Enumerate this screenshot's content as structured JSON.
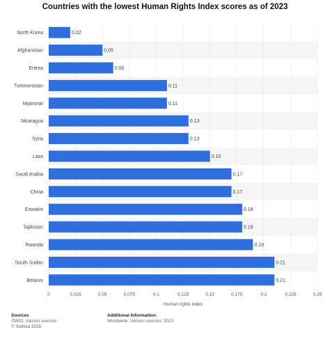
{
  "chart_data": {
    "type": "bar",
    "orientation": "horizontal",
    "title": "Countries with the lowest Human Rights Index scores as of 2023",
    "xlabel": "Human rights index",
    "ylabel": "",
    "xlim": [
      0,
      0.25
    ],
    "x_ticks": [
      "0",
      "0.025",
      "0.05",
      "0.075",
      "0.1",
      "0.125",
      "0.15",
      "0.175",
      "0.2",
      "0.225",
      "0.25"
    ],
    "x_tick_values": [
      0,
      0.025,
      0.05,
      0.075,
      0.1,
      0.125,
      0.15,
      0.175,
      0.2,
      0.225,
      0.25
    ],
    "categories": [
      "North Korea",
      "Afghanistan",
      "Eritrea",
      "Turkmenistan",
      "Myanmar",
      "Nicaragua",
      "Syria",
      "Laos",
      "Saudi Arabia",
      "China",
      "Eswatini",
      "Tajikistan",
      "Rwanda",
      "South Sudan",
      "Belarus"
    ],
    "values": [
      0.02,
      0.05,
      0.06,
      0.11,
      0.11,
      0.13,
      0.13,
      0.15,
      0.17,
      0.17,
      0.18,
      0.18,
      0.19,
      0.21,
      0.21
    ],
    "value_labels": [
      "0.02",
      "0.05",
      "0.06",
      "0.11",
      "0.11",
      "0.13",
      "0.13",
      "0.15",
      "0.17",
      "0.17",
      "0.18",
      "0.18",
      "0.19",
      "0.21",
      "0.21"
    ],
    "bar_color": "#2e6fdd",
    "stripe_color": "#f5f5f5",
    "grid": true
  },
  "footer": {
    "sources_heading": "Sources",
    "sources_line1": "OWID; Various sources",
    "sources_line2": "© Statista 2025",
    "additional_heading": "Additional Information:",
    "additional_line1": "Worldwide; Various sources; 2023"
  }
}
